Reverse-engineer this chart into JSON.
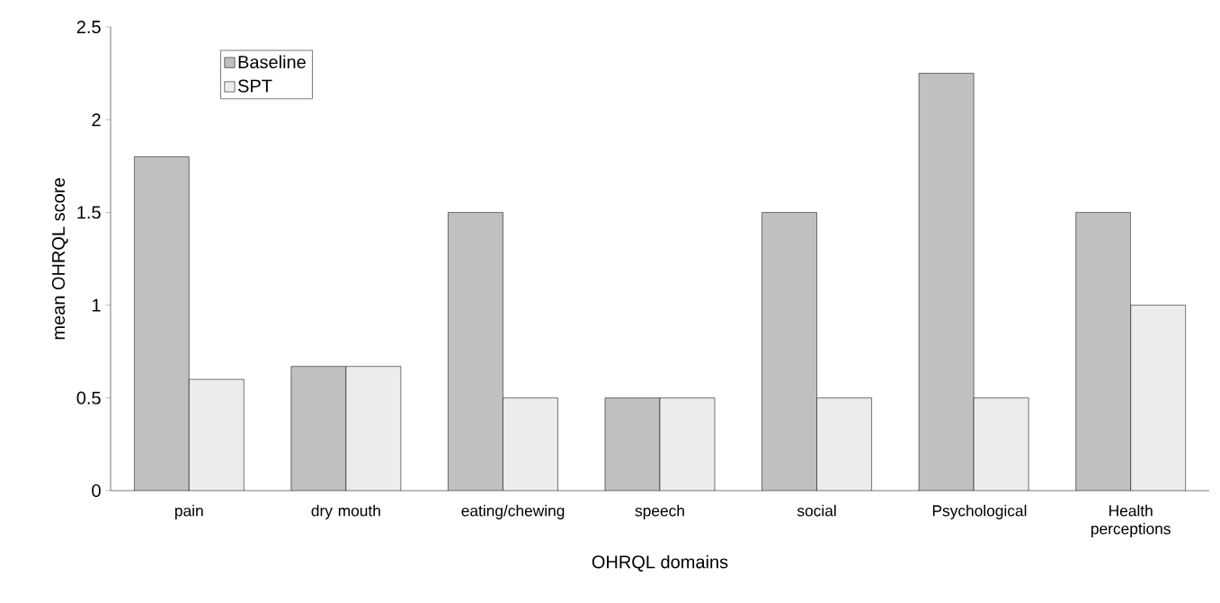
{
  "chart_data": {
    "type": "bar",
    "xlabel": "OHRQL domains",
    "ylabel": "mean OHRQL score",
    "categories": [
      "pain",
      "dry mouth",
      "eating/chewing",
      "speech",
      "social",
      "Psychological",
      "Health perceptions"
    ],
    "series": [
      {
        "name": "Baseline",
        "color": "#c0c0c0",
        "values": [
          1.8,
          0.67,
          1.5,
          0.5,
          1.5,
          2.25,
          1.5
        ]
      },
      {
        "name": "SPT",
        "color": "#ececec",
        "values": [
          0.6,
          0.67,
          0.5,
          0.5,
          0.5,
          0.5,
          1.0
        ]
      }
    ],
    "ylim": [
      0,
      2.5
    ],
    "yticks": [
      0,
      0.5,
      1,
      1.5,
      2,
      2.5
    ],
    "legend": "top left"
  }
}
